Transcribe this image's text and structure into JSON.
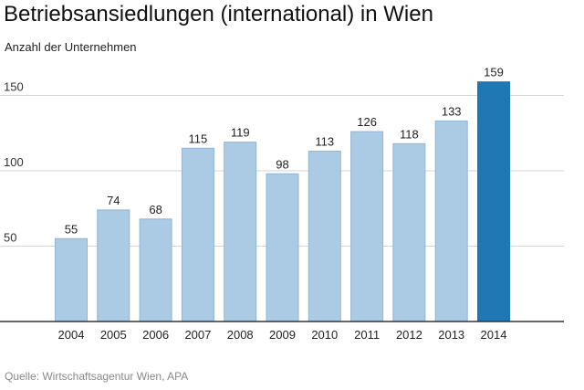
{
  "chart_data": {
    "type": "bar",
    "title": "Betriebsansiedlungen (international) in Wien",
    "subtitle": "Anzahl der Unternehmen",
    "categories": [
      "2004",
      "2005",
      "2006",
      "2007",
      "2008",
      "2009",
      "2010",
      "2011",
      "2012",
      "2013",
      "2014"
    ],
    "values": [
      55,
      74,
      68,
      115,
      119,
      98,
      113,
      126,
      118,
      133,
      159
    ],
    "yticks": [
      50,
      100,
      150
    ],
    "ylim": [
      0,
      175
    ],
    "grid": true,
    "colors": {
      "bar": "#abcbe4",
      "bar_border": "#8fb6d6",
      "highlight": "#1f77b4",
      "grid": "#d6d6d6",
      "axis": "#333333"
    },
    "highlight_category": "2014",
    "source": "Quelle: Wirtschaftsagentur Wien, APA"
  }
}
